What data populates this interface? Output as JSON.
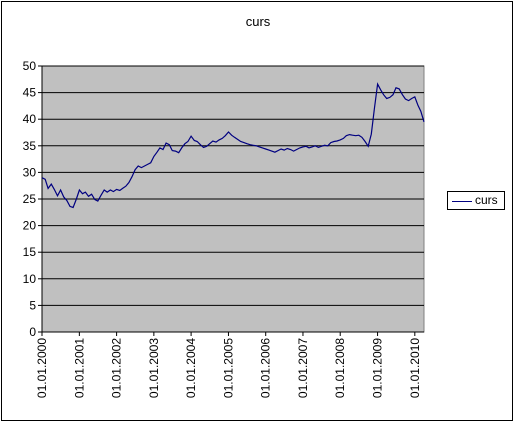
{
  "chart_data": {
    "type": "line",
    "title": "curs",
    "xlabel": "",
    "ylabel": "",
    "ylim": [
      0,
      50
    ],
    "y_ticks": [
      0,
      5,
      10,
      15,
      20,
      25,
      30,
      35,
      40,
      45,
      50
    ],
    "x_tick_labels": [
      "01.01.2000",
      "01.01.2001",
      "01.01.2002",
      "01.01.2003",
      "01.01.2004",
      "01.01.2005",
      "01.01.2006",
      "01.01.2007",
      "01.01.2008",
      "01.01.2009",
      "01.01.2010"
    ],
    "x_range": [
      "2000-01-01",
      "2010-04-01"
    ],
    "grid": "horizontal",
    "plot_background": "#c0c0c0",
    "legend": {
      "position": "right",
      "entries": [
        "curs"
      ]
    },
    "series": [
      {
        "name": "curs",
        "color": "#000080",
        "points": [
          [
            "2000-01-01",
            29.0
          ],
          [
            "2000-02-01",
            28.7
          ],
          [
            "2000-03-01",
            27.0
          ],
          [
            "2000-04-01",
            27.8
          ],
          [
            "2000-05-01",
            26.8
          ],
          [
            "2000-06-01",
            25.6
          ],
          [
            "2000-07-01",
            26.7
          ],
          [
            "2000-08-01",
            25.4
          ],
          [
            "2000-09-01",
            24.7
          ],
          [
            "2000-10-01",
            23.6
          ],
          [
            "2000-11-01",
            23.4
          ],
          [
            "2000-12-01",
            24.9
          ],
          [
            "2001-01-01",
            26.7
          ],
          [
            "2001-02-01",
            26.0
          ],
          [
            "2001-03-01",
            26.3
          ],
          [
            "2001-04-01",
            25.5
          ],
          [
            "2001-05-01",
            25.9
          ],
          [
            "2001-06-01",
            24.9
          ],
          [
            "2001-07-01",
            24.6
          ],
          [
            "2001-08-01",
            25.7
          ],
          [
            "2001-09-01",
            26.7
          ],
          [
            "2001-10-01",
            26.3
          ],
          [
            "2001-11-01",
            26.7
          ],
          [
            "2001-12-01",
            26.4
          ],
          [
            "2002-01-01",
            26.8
          ],
          [
            "2002-02-01",
            26.6
          ],
          [
            "2002-03-01",
            27.0
          ],
          [
            "2002-04-01",
            27.4
          ],
          [
            "2002-05-01",
            28.1
          ],
          [
            "2002-06-01",
            29.2
          ],
          [
            "2002-07-01",
            30.5
          ],
          [
            "2002-08-01",
            31.2
          ],
          [
            "2002-09-01",
            30.9
          ],
          [
            "2002-10-01",
            31.2
          ],
          [
            "2002-11-01",
            31.5
          ],
          [
            "2002-12-01",
            31.8
          ],
          [
            "2003-01-01",
            33.0
          ],
          [
            "2003-02-01",
            33.8
          ],
          [
            "2003-03-01",
            34.6
          ],
          [
            "2003-04-01",
            34.3
          ],
          [
            "2003-05-01",
            35.5
          ],
          [
            "2003-06-01",
            35.2
          ],
          [
            "2003-07-01",
            34.1
          ],
          [
            "2003-08-01",
            34.0
          ],
          [
            "2003-09-01",
            33.7
          ],
          [
            "2003-10-01",
            34.6
          ],
          [
            "2003-11-01",
            35.4
          ],
          [
            "2003-12-01",
            35.8
          ],
          [
            "2004-01-01",
            36.8
          ],
          [
            "2004-02-01",
            36.0
          ],
          [
            "2004-03-01",
            35.8
          ],
          [
            "2004-04-01",
            35.2
          ],
          [
            "2004-05-01",
            34.7
          ],
          [
            "2004-06-01",
            34.9
          ],
          [
            "2004-07-01",
            35.4
          ],
          [
            "2004-08-01",
            35.9
          ],
          [
            "2004-09-01",
            35.7
          ],
          [
            "2004-10-01",
            36.1
          ],
          [
            "2004-11-01",
            36.4
          ],
          [
            "2004-12-01",
            36.9
          ],
          [
            "2005-01-01",
            37.6
          ],
          [
            "2005-02-01",
            37.0
          ],
          [
            "2005-03-01",
            36.6
          ],
          [
            "2005-04-01",
            36.2
          ],
          [
            "2005-05-01",
            35.8
          ],
          [
            "2005-06-01",
            35.6
          ],
          [
            "2005-07-01",
            35.4
          ],
          [
            "2005-08-01",
            35.2
          ],
          [
            "2005-09-01",
            35.1
          ],
          [
            "2005-10-01",
            35.0
          ],
          [
            "2005-11-01",
            34.8
          ],
          [
            "2005-12-01",
            34.6
          ],
          [
            "2006-01-01",
            34.4
          ],
          [
            "2006-02-01",
            34.2
          ],
          [
            "2006-03-01",
            34.0
          ],
          [
            "2006-04-01",
            33.8
          ],
          [
            "2006-05-01",
            34.1
          ],
          [
            "2006-06-01",
            34.4
          ],
          [
            "2006-07-01",
            34.2
          ],
          [
            "2006-08-01",
            34.5
          ],
          [
            "2006-09-01",
            34.3
          ],
          [
            "2006-10-01",
            34.0
          ],
          [
            "2006-11-01",
            34.3
          ],
          [
            "2006-12-01",
            34.6
          ],
          [
            "2007-01-01",
            34.8
          ],
          [
            "2007-02-01",
            34.9
          ],
          [
            "2007-03-01",
            34.6
          ],
          [
            "2007-04-01",
            34.8
          ],
          [
            "2007-05-01",
            35.0
          ],
          [
            "2007-06-01",
            34.7
          ],
          [
            "2007-07-01",
            34.9
          ],
          [
            "2007-08-01",
            35.1
          ],
          [
            "2007-09-01",
            35.0
          ],
          [
            "2007-10-01",
            35.6
          ],
          [
            "2007-11-01",
            35.8
          ],
          [
            "2007-12-01",
            35.9
          ],
          [
            "2008-01-01",
            36.1
          ],
          [
            "2008-02-01",
            36.4
          ],
          [
            "2008-03-01",
            36.9
          ],
          [
            "2008-04-01",
            37.1
          ],
          [
            "2008-05-01",
            37.0
          ],
          [
            "2008-06-01",
            36.9
          ],
          [
            "2008-07-01",
            37.0
          ],
          [
            "2008-08-01",
            36.6
          ],
          [
            "2008-09-01",
            35.8
          ],
          [
            "2008-10-01",
            34.9
          ],
          [
            "2008-11-01",
            37.2
          ],
          [
            "2008-12-01",
            42.0
          ],
          [
            "2009-01-01",
            46.6
          ],
          [
            "2009-02-01",
            45.5
          ],
          [
            "2009-03-01",
            44.6
          ],
          [
            "2009-04-01",
            43.9
          ],
          [
            "2009-05-01",
            44.1
          ],
          [
            "2009-06-01",
            44.6
          ],
          [
            "2009-07-01",
            45.9
          ],
          [
            "2009-08-01",
            45.7
          ],
          [
            "2009-09-01",
            44.6
          ],
          [
            "2009-10-01",
            43.8
          ],
          [
            "2009-11-01",
            43.5
          ],
          [
            "2009-12-01",
            43.9
          ],
          [
            "2010-01-01",
            44.2
          ],
          [
            "2010-02-01",
            42.6
          ],
          [
            "2010-03-01",
            41.5
          ],
          [
            "2010-04-01",
            39.5
          ]
        ]
      }
    ]
  }
}
